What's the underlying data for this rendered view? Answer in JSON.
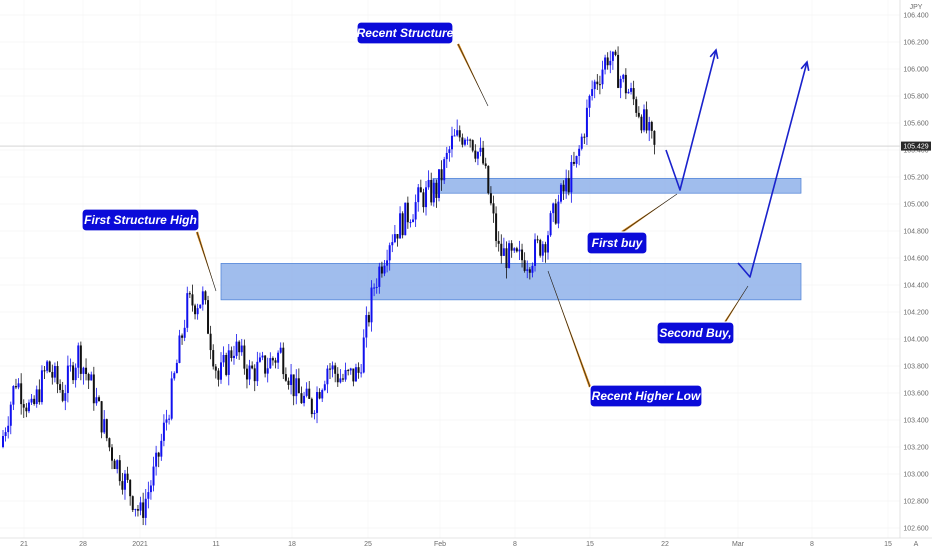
{
  "chart_data": {
    "type": "candlestick",
    "symbol_unit": "JPY",
    "last_price": "105.429",
    "y_ticks": [
      "106.400",
      "106.200",
      "106.000",
      "105.800",
      "105.600",
      "105.400",
      "105.200",
      "105.000",
      "104.800",
      "104.600",
      "104.400",
      "104.200",
      "104.000",
      "103.800",
      "103.600",
      "103.400",
      "103.200",
      "103.000",
      "102.800",
      "102.600"
    ],
    "x_ticks": [
      "21",
      "28",
      "2021",
      "11",
      "18",
      "25",
      "Feb",
      "8",
      "15",
      "22",
      "Mar",
      "8",
      "15"
    ],
    "axis_corner_label": "A",
    "ylim": [
      102.55,
      106.5
    ],
    "grid": true,
    "zones": [
      {
        "name": "upper-demand-zone",
        "y_low": 105.08,
        "y_high": 105.19
      },
      {
        "name": "lower-demand-zone",
        "y_low": 104.29,
        "y_high": 104.56
      }
    ],
    "colors": {
      "up": "#1111ee",
      "down": "#111111",
      "zone": "#8fb2ea",
      "zone_border": "#4a7fd6",
      "label_bg": "#0b0bd9",
      "arrow": "#1a22cc",
      "pointer": "#d98a1c"
    },
    "annotations": [
      {
        "key": "recent_structure",
        "text": "Recent Structure"
      },
      {
        "key": "first_structure_high",
        "text": "First Structure High"
      },
      {
        "key": "first_buy",
        "text": "First buy"
      },
      {
        "key": "second_buy",
        "text": "Second Buy,"
      },
      {
        "key": "recent_higher_low",
        "text": "Recent Higher Low"
      }
    ],
    "ohlc_anchor_closes": [
      103.2,
      103.7,
      103.45,
      103.8,
      103.6,
      103.9,
      103.6,
      103.2,
      102.95,
      102.7,
      103.05,
      103.6,
      104.25,
      104.3,
      103.7,
      103.95,
      103.75,
      103.8,
      103.9,
      103.6,
      103.5,
      103.8,
      103.7,
      103.75,
      104.4,
      104.75,
      104.9,
      105.05,
      105.1,
      105.45,
      105.55,
      105.3,
      104.65,
      104.58,
      104.6,
      104.75,
      105.05,
      105.3,
      105.85,
      106.1,
      105.9,
      105.7,
      105.4
    ]
  }
}
